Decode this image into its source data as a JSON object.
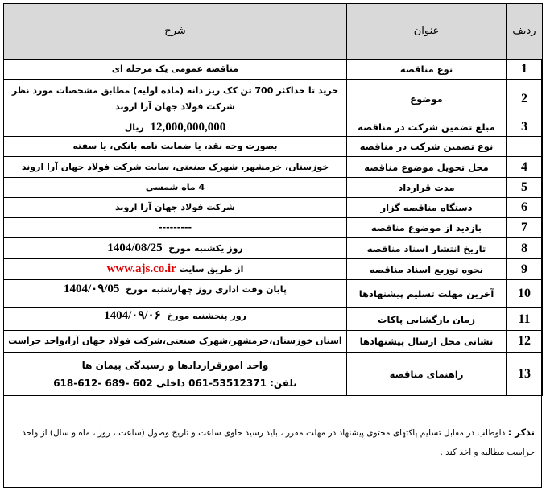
{
  "header": {
    "row": "ردیف",
    "title": "عنوان",
    "description": "شرح"
  },
  "rows": [
    {
      "num": "1",
      "title": "نوع مناقصه",
      "desc": "مناقصه عمومی یک مرحله ای"
    },
    {
      "num": "2",
      "title": "موضوع",
      "desc": "خرید تا حداکثر 700 تن کک ریز دانه (ماده اولیه) مطابق مشخصات مورد نظر شرکت فولاد جهان آرا اروند"
    },
    {
      "num": "3",
      "title": "مبلغ تضمین شرکت در مناقصه",
      "desc_value": "12,000,000,000",
      "desc_unit": "ریال"
    },
    {
      "num": "",
      "title": "نوع تضمین شرکت در مناقصه",
      "desc": "بصورت وجه نقد، یا ضمانت نامه بانکی، یا سفته"
    },
    {
      "num": "4",
      "title": "محل تحویل موضوع مناقصه",
      "desc": "خوزستان، خرمشهر، شهرک صنعتی، سایت شرکت فولاد جهان آرا اروند"
    },
    {
      "num": "5",
      "title": "مدت قرارداد",
      "desc": "4 ماه شمسی"
    },
    {
      "num": "6",
      "title": "دستگاه مناقصه گزار",
      "desc": "شرکت فولاد جهان آرا اروند"
    },
    {
      "num": "7",
      "title": "بازدید از موضوع مناقصه",
      "desc": "---------"
    },
    {
      "num": "8",
      "title": "تاریخ انتشار اسناد مناقصه",
      "desc": "روز یکشنبه مورخ",
      "desc_value": "1404/08/25"
    },
    {
      "num": "9",
      "title": "نحوه توزیع اسناد مناقصه",
      "desc": "از طریق سایت",
      "link": "www.ajs.co.ir"
    },
    {
      "num": "10",
      "title": "آخرین مهلت تسلیم پیشنهادها",
      "desc": "پایان وقت اداری روز چهارشنبه مورخ",
      "desc_value": "1404/۰۹/05"
    },
    {
      "num": "11",
      "title": "زمان بازگشایی پاکات",
      "desc": "روز پنجشنبه مورخ",
      "desc_value": "1404/۰۹/۰۶"
    },
    {
      "num": "12",
      "title": "نشانی محل ارسال پیشنهادها",
      "desc": "استان خوزستان،خرمشهر،شهرک صنعتی،شرکت فولاد جهان آرا،واحد حراست"
    },
    {
      "num": "13",
      "title": "راهنمای مناقصه",
      "desc": "واحد امورقراردادها و رسیدگی پیمان ها",
      "phone": "تلفن: 53512371-061 داخلی 602 -689 -612-618"
    }
  ],
  "note": {
    "label": "تذکر :",
    "text": "داوطلب در مقابل تسلیم پاکتهای محتوی پیشنهاد در مهلت مقرر ، باید رسید حاوی ساعت و تاریخ وصول (ساعت ، روز ، ماه و سال) از واحد حراست مطالبه و اخذ کند ."
  },
  "colors": {
    "header_bg": "#d9d9d9",
    "link": "#e00000"
  }
}
